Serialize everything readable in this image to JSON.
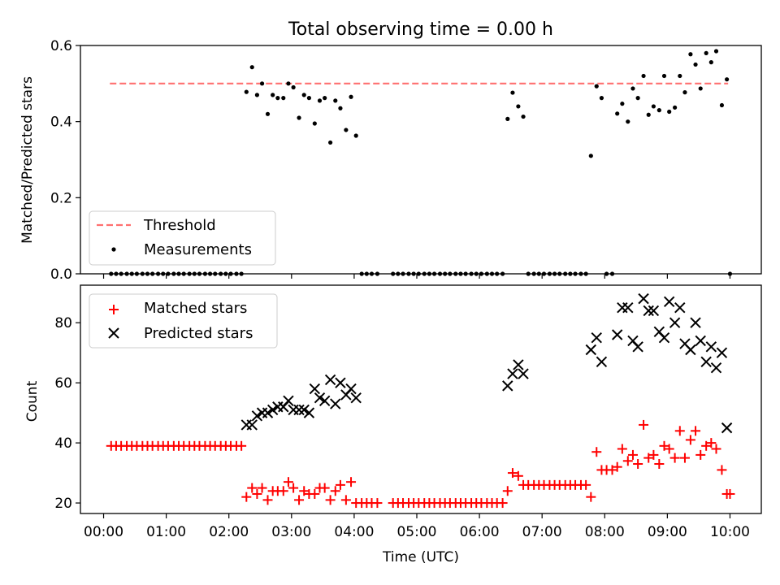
{
  "chart_data": {
    "type": "scatter",
    "title": "Total observing time = 0.00 h",
    "xlabel": "Time (UTC)",
    "x_tick_labels": [
      "00:00",
      "01:00",
      "02:00",
      "03:00",
      "04:00",
      "05:00",
      "06:00",
      "07:00",
      "08:00",
      "09:00",
      "10:00"
    ],
    "xlim_hours": [
      -0.37,
      10.5
    ],
    "panels": [
      {
        "name": "ratio",
        "ylabel": "Matched/Predicted stars",
        "ylim": [
          0,
          0.6
        ],
        "y_ticks": [
          "0.0",
          "0.2",
          "0.4",
          "0.6"
        ],
        "legend": {
          "position": "lower left",
          "threshold_label": "Threshold",
          "measurements_label": "Measurements"
        },
        "threshold": {
          "value": 0.5,
          "x_start": 0.1,
          "x_end": 9.97,
          "color": "#ff7070"
        },
        "measurements": [
          [
            0.12,
            0
          ],
          [
            0.2,
            0
          ],
          [
            0.28,
            0
          ],
          [
            0.37,
            0
          ],
          [
            0.45,
            0
          ],
          [
            0.53,
            0
          ],
          [
            0.62,
            0
          ],
          [
            0.7,
            0
          ],
          [
            0.78,
            0
          ],
          [
            0.87,
            0
          ],
          [
            0.95,
            0
          ],
          [
            1.03,
            0
          ],
          [
            1.12,
            0
          ],
          [
            1.2,
            0
          ],
          [
            1.28,
            0
          ],
          [
            1.37,
            0
          ],
          [
            1.45,
            0
          ],
          [
            1.53,
            0
          ],
          [
            1.62,
            0
          ],
          [
            1.7,
            0
          ],
          [
            1.78,
            0
          ],
          [
            1.87,
            0
          ],
          [
            1.95,
            0
          ],
          [
            2.03,
            0
          ],
          [
            2.12,
            0
          ],
          [
            2.2,
            0
          ],
          [
            2.28,
            0.478
          ],
          [
            2.37,
            0.543
          ],
          [
            2.45,
            0.47
          ],
          [
            2.53,
            0.5
          ],
          [
            2.62,
            0.42
          ],
          [
            2.7,
            0.47
          ],
          [
            2.78,
            0.462
          ],
          [
            2.87,
            0.462
          ],
          [
            2.95,
            0.5
          ],
          [
            3.03,
            0.49
          ],
          [
            3.12,
            0.41
          ],
          [
            3.2,
            0.47
          ],
          [
            3.28,
            0.462
          ],
          [
            3.37,
            0.395
          ],
          [
            3.45,
            0.455
          ],
          [
            3.53,
            0.462
          ],
          [
            3.62,
            0.345
          ],
          [
            3.7,
            0.455
          ],
          [
            3.78,
            0.435
          ],
          [
            3.87,
            0.378
          ],
          [
            3.95,
            0.465
          ],
          [
            4.03,
            0.363
          ],
          [
            4.12,
            0
          ],
          [
            4.2,
            0
          ],
          [
            4.28,
            0
          ],
          [
            4.37,
            0
          ],
          [
            4.62,
            0
          ],
          [
            4.7,
            0
          ],
          [
            4.78,
            0
          ],
          [
            4.87,
            0
          ],
          [
            4.95,
            0
          ],
          [
            5.03,
            0
          ],
          [
            5.12,
            0
          ],
          [
            5.2,
            0
          ],
          [
            5.28,
            0
          ],
          [
            5.37,
            0
          ],
          [
            5.45,
            0
          ],
          [
            5.53,
            0
          ],
          [
            5.62,
            0
          ],
          [
            5.7,
            0
          ],
          [
            5.78,
            0
          ],
          [
            5.87,
            0
          ],
          [
            5.95,
            0
          ],
          [
            6.03,
            0
          ],
          [
            6.12,
            0
          ],
          [
            6.2,
            0
          ],
          [
            6.28,
            0
          ],
          [
            6.37,
            0
          ],
          [
            6.45,
            0.407
          ],
          [
            6.53,
            0.476
          ],
          [
            6.62,
            0.44
          ],
          [
            6.7,
            0.413
          ],
          [
            6.78,
            0
          ],
          [
            6.87,
            0
          ],
          [
            6.95,
            0
          ],
          [
            7.03,
            0
          ],
          [
            7.12,
            0
          ],
          [
            7.2,
            0
          ],
          [
            7.28,
            0
          ],
          [
            7.37,
            0
          ],
          [
            7.45,
            0
          ],
          [
            7.53,
            0
          ],
          [
            7.62,
            0
          ],
          [
            7.7,
            0
          ],
          [
            7.78,
            0.31
          ],
          [
            7.87,
            0.493
          ],
          [
            7.95,
            0.462
          ],
          [
            8.03,
            0
          ],
          [
            8.12,
            0
          ],
          [
            8.2,
            0.421
          ],
          [
            8.28,
            0.447
          ],
          [
            8.37,
            0.4
          ],
          [
            8.45,
            0.487
          ],
          [
            8.53,
            0.462
          ],
          [
            8.62,
            0.52
          ],
          [
            8.7,
            0.418
          ],
          [
            8.78,
            0.44
          ],
          [
            8.87,
            0.43
          ],
          [
            8.95,
            0.52
          ],
          [
            9.03,
            0.426
          ],
          [
            9.12,
            0.437
          ],
          [
            9.2,
            0.52
          ],
          [
            9.28,
            0.477
          ],
          [
            9.37,
            0.577
          ],
          [
            9.45,
            0.55
          ],
          [
            9.53,
            0.487
          ],
          [
            9.62,
            0.58
          ],
          [
            9.7,
            0.556
          ],
          [
            9.78,
            0.585
          ],
          [
            9.87,
            0.443
          ],
          [
            9.95,
            0.511
          ],
          [
            10.0,
            0
          ]
        ]
      },
      {
        "name": "counts",
        "ylabel": "Count",
        "ylim": [
          16.5,
          92.5
        ],
        "y_ticks": [
          "20",
          "40",
          "60",
          "80"
        ],
        "legend": {
          "position": "upper left",
          "matched_label": "Matched stars",
          "predicted_label": "Predicted stars"
        },
        "matched_color": "#ff0000",
        "predicted_color": "#000000",
        "matched": [
          [
            0.12,
            39
          ],
          [
            0.2,
            39
          ],
          [
            0.28,
            39
          ],
          [
            0.37,
            39
          ],
          [
            0.45,
            39
          ],
          [
            0.53,
            39
          ],
          [
            0.62,
            39
          ],
          [
            0.7,
            39
          ],
          [
            0.78,
            39
          ],
          [
            0.87,
            39
          ],
          [
            0.95,
            39
          ],
          [
            1.03,
            39
          ],
          [
            1.12,
            39
          ],
          [
            1.2,
            39
          ],
          [
            1.28,
            39
          ],
          [
            1.37,
            39
          ],
          [
            1.45,
            39
          ],
          [
            1.53,
            39
          ],
          [
            1.62,
            39
          ],
          [
            1.7,
            39
          ],
          [
            1.78,
            39
          ],
          [
            1.87,
            39
          ],
          [
            1.95,
            39
          ],
          [
            2.03,
            39
          ],
          [
            2.12,
            39
          ],
          [
            2.2,
            39
          ],
          [
            2.28,
            22
          ],
          [
            2.37,
            25
          ],
          [
            2.45,
            23
          ],
          [
            2.53,
            25
          ],
          [
            2.62,
            21
          ],
          [
            2.7,
            24
          ],
          [
            2.78,
            24
          ],
          [
            2.87,
            24
          ],
          [
            2.95,
            27
          ],
          [
            3.03,
            25
          ],
          [
            3.12,
            21
          ],
          [
            3.2,
            24
          ],
          [
            3.28,
            23
          ],
          [
            3.37,
            23
          ],
          [
            3.45,
            25
          ],
          [
            3.53,
            25
          ],
          [
            3.62,
            21
          ],
          [
            3.7,
            24
          ],
          [
            3.78,
            26
          ],
          [
            3.87,
            21
          ],
          [
            3.95,
            27
          ],
          [
            4.03,
            20
          ],
          [
            4.12,
            20
          ],
          [
            4.2,
            20
          ],
          [
            4.28,
            20
          ],
          [
            4.37,
            20
          ],
          [
            4.62,
            20
          ],
          [
            4.7,
            20
          ],
          [
            4.78,
            20
          ],
          [
            4.87,
            20
          ],
          [
            4.95,
            20
          ],
          [
            5.03,
            20
          ],
          [
            5.12,
            20
          ],
          [
            5.2,
            20
          ],
          [
            5.28,
            20
          ],
          [
            5.37,
            20
          ],
          [
            5.45,
            20
          ],
          [
            5.53,
            20
          ],
          [
            5.62,
            20
          ],
          [
            5.7,
            20
          ],
          [
            5.78,
            20
          ],
          [
            5.87,
            20
          ],
          [
            5.95,
            20
          ],
          [
            6.03,
            20
          ],
          [
            6.12,
            20
          ],
          [
            6.2,
            20
          ],
          [
            6.28,
            20
          ],
          [
            6.37,
            20
          ],
          [
            6.45,
            24
          ],
          [
            6.53,
            30
          ],
          [
            6.62,
            29
          ],
          [
            6.7,
            26
          ],
          [
            6.78,
            26
          ],
          [
            6.87,
            26
          ],
          [
            6.95,
            26
          ],
          [
            7.03,
            26
          ],
          [
            7.12,
            26
          ],
          [
            7.2,
            26
          ],
          [
            7.28,
            26
          ],
          [
            7.37,
            26
          ],
          [
            7.45,
            26
          ],
          [
            7.53,
            26
          ],
          [
            7.62,
            26
          ],
          [
            7.7,
            26
          ],
          [
            7.78,
            22
          ],
          [
            7.87,
            37
          ],
          [
            7.95,
            31
          ],
          [
            8.03,
            31
          ],
          [
            8.12,
            31
          ],
          [
            8.2,
            32
          ],
          [
            8.28,
            38
          ],
          [
            8.37,
            34
          ],
          [
            8.45,
            36
          ],
          [
            8.53,
            33
          ],
          [
            8.62,
            46
          ],
          [
            8.7,
            35
          ],
          [
            8.78,
            36
          ],
          [
            8.87,
            33
          ],
          [
            8.95,
            39
          ],
          [
            9.03,
            38
          ],
          [
            9.12,
            35
          ],
          [
            9.2,
            44
          ],
          [
            9.28,
            35
          ],
          [
            9.37,
            41
          ],
          [
            9.45,
            44
          ],
          [
            9.53,
            36
          ],
          [
            9.62,
            39
          ],
          [
            9.7,
            40
          ],
          [
            9.78,
            38
          ],
          [
            9.87,
            31
          ],
          [
            9.95,
            23
          ],
          [
            10.0,
            23
          ]
        ],
        "predicted": [
          [
            2.28,
            46
          ],
          [
            2.37,
            46
          ],
          [
            2.45,
            49
          ],
          [
            2.53,
            50
          ],
          [
            2.62,
            50
          ],
          [
            2.7,
            51
          ],
          [
            2.78,
            52
          ],
          [
            2.87,
            52
          ],
          [
            2.95,
            54
          ],
          [
            3.03,
            51
          ],
          [
            3.12,
            51
          ],
          [
            3.2,
            51
          ],
          [
            3.28,
            50
          ],
          [
            3.37,
            58
          ],
          [
            3.45,
            55
          ],
          [
            3.53,
            54
          ],
          [
            3.62,
            61
          ],
          [
            3.7,
            53
          ],
          [
            3.78,
            60
          ],
          [
            3.87,
            56
          ],
          [
            3.95,
            58
          ],
          [
            4.03,
            55
          ],
          [
            6.45,
            59
          ],
          [
            6.53,
            63
          ],
          [
            6.62,
            66
          ],
          [
            6.7,
            63
          ],
          [
            7.78,
            71
          ],
          [
            7.87,
            75
          ],
          [
            7.95,
            67
          ],
          [
            8.2,
            76
          ],
          [
            8.28,
            85
          ],
          [
            8.37,
            85
          ],
          [
            8.45,
            74
          ],
          [
            8.53,
            72
          ],
          [
            8.62,
            88
          ],
          [
            8.7,
            84
          ],
          [
            8.78,
            84
          ],
          [
            8.87,
            77
          ],
          [
            8.95,
            75
          ],
          [
            9.03,
            87
          ],
          [
            9.12,
            80
          ],
          [
            9.2,
            85
          ],
          [
            9.28,
            73
          ],
          [
            9.37,
            71
          ],
          [
            9.45,
            80
          ],
          [
            9.53,
            74
          ],
          [
            9.62,
            67
          ],
          [
            9.7,
            72
          ],
          [
            9.78,
            65
          ],
          [
            9.87,
            70
          ],
          [
            9.95,
            45
          ]
        ]
      }
    ],
    "grid": false
  }
}
